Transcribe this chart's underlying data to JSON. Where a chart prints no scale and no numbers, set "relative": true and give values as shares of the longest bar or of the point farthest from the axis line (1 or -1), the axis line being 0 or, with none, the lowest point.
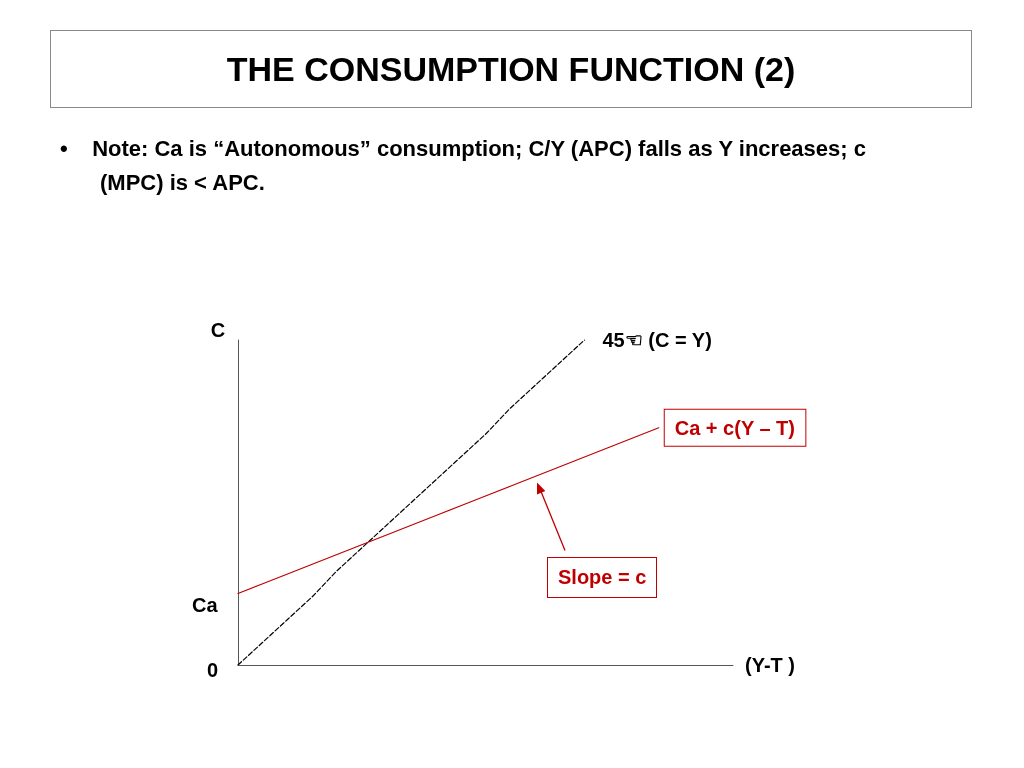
{
  "chart_data": {
    "type": "line",
    "title": "THE CONSUMPTION FUNCTION (2)",
    "subtitle": "•    Note: Ca is “Autonomous” consumption; C/Y (APC) falls as Y increases; c (MPC) is < APC.",
    "xlabel": "(Y-T )",
    "ylabel": "C",
    "relative": true,
    "categories": [
      null,
      null,
      null,
      null,
      null,
      null,
      null,
      null,
      null,
      null,
      null,
      null,
      null,
      null,
      null,
      null,
      null,
      null,
      null,
      null,
      null
    ],
    "series": [
      {
        "name": "45☜ (C = Y)",
        "color": "#000000",
        "line_style": "dashed",
        "values": [
          0,
          0.07,
          0.14,
          0.21,
          0.29,
          0.36,
          0.43,
          0.5,
          0.57,
          0.64,
          0.71,
          0.79,
          0.86,
          0.93,
          1,
          null,
          null,
          null,
          null,
          null,
          null
        ]
      },
      {
        "name": "Ca + c(Y – T)",
        "color": "#c00000",
        "line_style": "solid",
        "values": [
          0.22,
          0.25,
          0.28,
          0.31,
          0.34,
          0.37,
          0.4,
          0.43,
          0.46,
          0.49,
          0.52,
          0.55,
          0.58,
          0.61,
          0.64,
          0.67,
          0.7,
          0.73,
          null,
          null,
          null
        ]
      }
    ],
    "annotations": [
      "Ca",
      "0",
      "Slope = c"
    ],
    "marker": "none",
    "grid": false,
    "legend": false
  }
}
